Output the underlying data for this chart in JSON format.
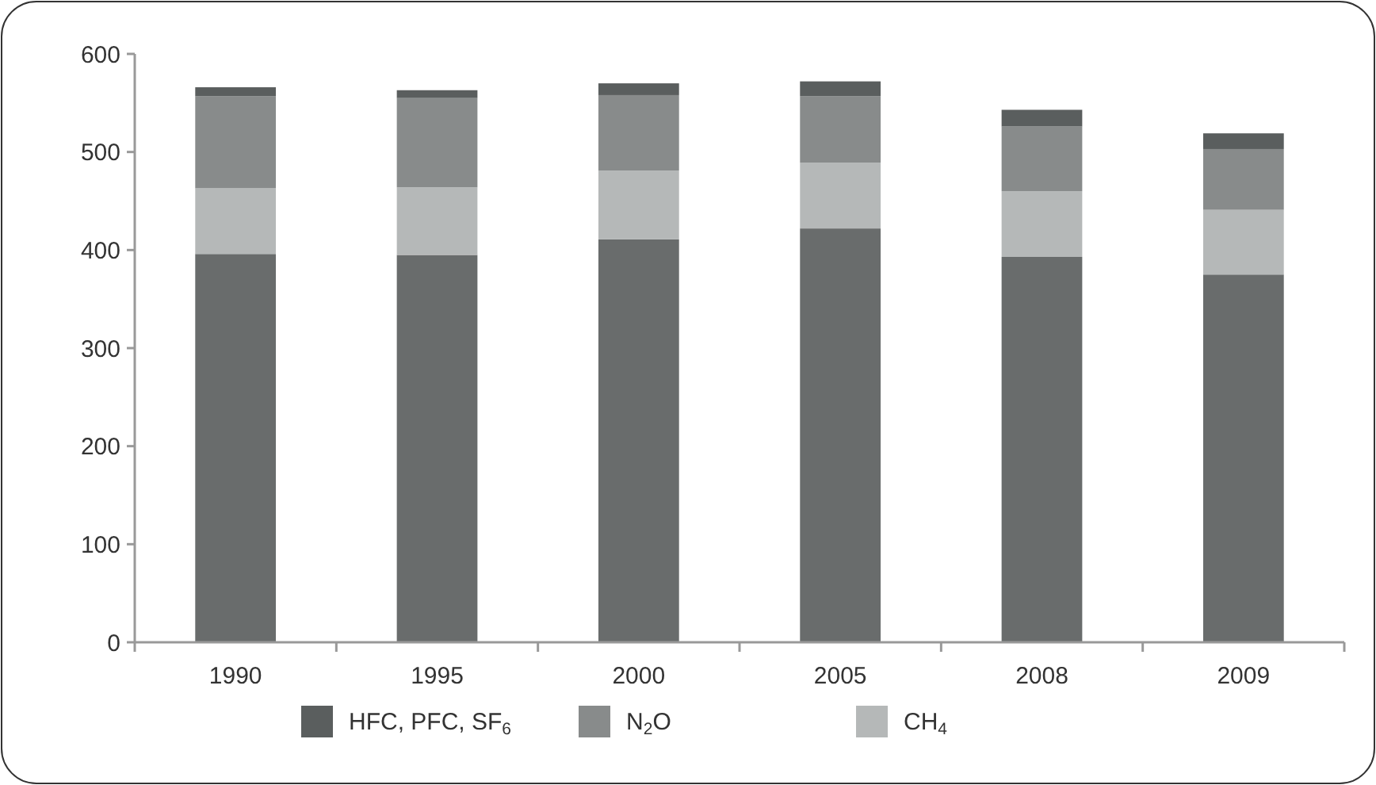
{
  "chart_data": {
    "type": "bar",
    "stacked": true,
    "categories": [
      "1990",
      "1995",
      "2000",
      "2005",
      "2008",
      "2009"
    ],
    "series": [
      {
        "color": "#696c6c",
        "values": [
          396,
          395,
          411,
          422,
          393,
          375
        ]
      },
      {
        "name": "CH$_{4}$",
        "color": "#b5b8b8",
        "values": [
          67,
          69,
          70,
          67,
          67,
          66
        ]
      },
      {
        "name": "N$_{2}$O",
        "color": "#888b8b",
        "values": [
          94,
          91,
          77,
          68,
          66,
          62
        ]
      },
      {
        "name": "HFC, PFC, SF$_{6}$",
        "color": "#5a5e5e",
        "values": [
          9,
          8,
          12,
          15,
          17,
          16
        ]
      }
    ],
    "ylim": [
      0,
      600
    ],
    "yticks": [
      0,
      100,
      200,
      300,
      400,
      500,
      600
    ],
    "legend": "bottom",
    "grid": false
  }
}
